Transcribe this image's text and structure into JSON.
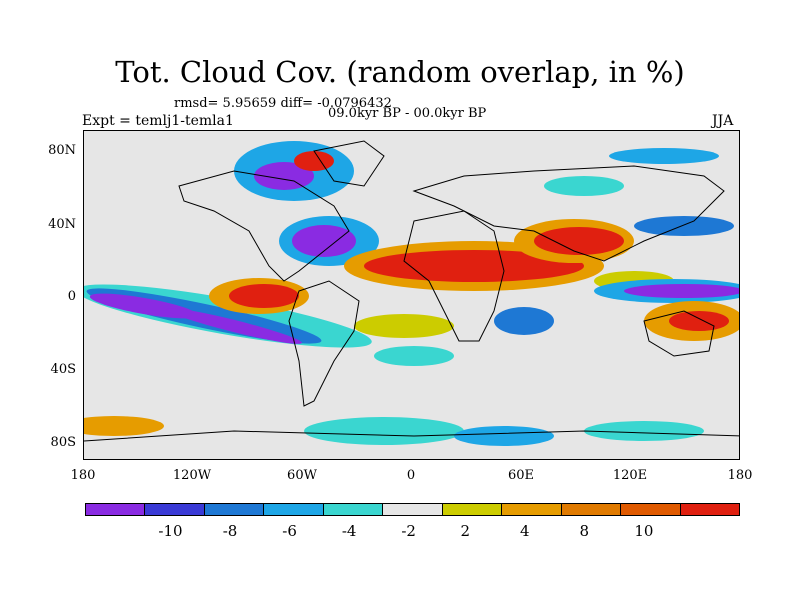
{
  "title": "Tot. Cloud Cov. (random overlap, in %)",
  "stats": "rmsd= 5.95659 diff= -0.0796432",
  "period": "09.0kyr BP - 00.0kyr BP",
  "experiment": "Expt = temlj1-temla1",
  "season": "JJA",
  "y_axis": {
    "ticks": [
      "80N",
      "40N",
      "0",
      "40S",
      "80S"
    ]
  },
  "x_axis": {
    "ticks": [
      "180",
      "120W",
      "60W",
      "0",
      "60E",
      "120E",
      "180"
    ]
  },
  "colorbar": {
    "colors": [
      "#8a2be2",
      "#3a3ad6",
      "#1e78d4",
      "#1ea6e6",
      "#3ad6d0",
      "#e6e6e6",
      "#cccc00",
      "#e69c00",
      "#e07a00",
      "#e05a00",
      "#e02010"
    ],
    "labels": [
      "-10",
      "-8",
      "-6",
      "-4",
      "-2",
      "2",
      "4",
      "8",
      "10"
    ]
  }
}
